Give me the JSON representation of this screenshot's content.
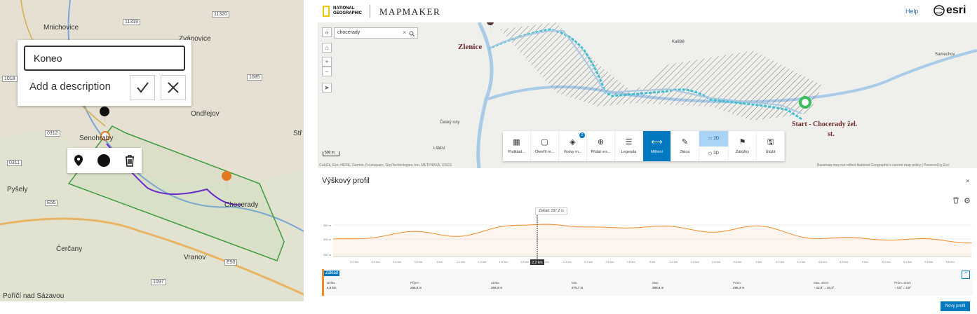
{
  "left_map": {
    "popup": {
      "input_value": "Koneo",
      "description_placeholder": "Add a description"
    },
    "toolbar_icons": [
      "location-pin-icon",
      "circle-fill-icon",
      "trash-icon"
    ],
    "labels": [
      {
        "text": "Mnichovice"
      },
      {
        "text": "Zvánovice"
      },
      {
        "text": "Ondřejov"
      },
      {
        "text": "Senohraby"
      },
      {
        "text": "Stř"
      },
      {
        "text": "Pyšely"
      },
      {
        "text": "Chocerady"
      },
      {
        "text": "Čerčany"
      },
      {
        "text": "Vranov"
      },
      {
        "text": "Poříčí nad Sázavou"
      }
    ],
    "road_numbers": [
      "11320",
      "11319",
      "1085",
      "1018",
      "0312",
      "0311",
      "E55",
      "E50",
      "1097",
      "11320"
    ]
  },
  "header": {
    "brand_line1": "NATIONAL",
    "brand_line2": "GEOGRAPHIC",
    "app_name": "MAPMAKER",
    "help": "Help",
    "esri": "esri"
  },
  "map": {
    "search_value": "chocerady",
    "scale": "500 m",
    "labels": {
      "zlenice": "Zlenice",
      "start": "Start - Chocerady žel.",
      "start2": "st.",
      "kaliste": "Kaliště",
      "samechov": "Samechov",
      "cesky_kruh": "Český ruty",
      "ledni": "Lštění"
    },
    "attribution_left": "Cu&Gk, Esri, HERE, Garmin, Foursquare, GeoTechnologies, Inc, METI/NASA, USGS",
    "attribution_right": "Basemap may not reflect National Geographic's current map policy | Powered by Esri"
  },
  "tools": [
    {
      "label": "Podklad...",
      "icon": "basemap-icon",
      "active": false
    },
    {
      "label": "Otevřít m...",
      "icon": "open-map-icon",
      "active": false
    },
    {
      "label": "Vrstvy m...",
      "icon": "layers-icon",
      "active": false,
      "badge": "2"
    },
    {
      "label": "Přidat vrs...",
      "icon": "add-layer-icon",
      "active": false
    },
    {
      "label": "Legenda",
      "icon": "legend-icon",
      "active": false
    },
    {
      "label": "Měření",
      "icon": "measure-icon",
      "active": true
    },
    {
      "label": "Skica",
      "icon": "sketch-icon",
      "active": false
    },
    {
      "label": "2D",
      "icon": "2d-icon",
      "active": true,
      "toggle": true
    },
    {
      "label": "3D",
      "icon": "3d-icon",
      "active": false,
      "toggle": true
    },
    {
      "label": "Záložky",
      "icon": "bookmark-icon",
      "active": false
    },
    {
      "label": "Uložit",
      "icon": "save-icon",
      "active": false
    }
  ],
  "profile": {
    "title": "Výškový profil",
    "close": "×",
    "tooltip": "Základ: 297,2 m",
    "cursor_label": "2,2 km",
    "y_ticks": [
      "350 m",
      "300 m",
      "250 m"
    ],
    "x_ticks": [
      "0,2 km",
      "0,4 km",
      "0,6 km",
      "0,8 km",
      "1 km",
      "1,2 km",
      "1,4 km",
      "1,6 km",
      "1,8 km",
      "2 km",
      "2,2 km",
      "2,4 km",
      "2,6 km",
      "2,8 km",
      "3 km",
      "3,2 km",
      "3,4 km",
      "3,6 km",
      "3,8 km",
      "4 km",
      "4,2 km",
      "4,4 km",
      "4,6 km",
      "4,8 km",
      "5 km",
      "5,2 km",
      "5,4 km",
      "5,6 km",
      "5,8 km"
    ],
    "stats_tab": "Základ",
    "stats": [
      {
        "label": "Délka",
        "value": "6,6 km"
      },
      {
        "label": "Přijem",
        "value": "266,8 m"
      },
      {
        "label": "Ztráta",
        "value": "269,3 m"
      },
      {
        "label": "Min.",
        "value": "275,7 m"
      },
      {
        "label": "Max.",
        "value": "399,8 m"
      },
      {
        "label": "Prům.",
        "value": "295,3 m"
      },
      {
        "label": "Max. sklon",
        "value": "↑ 22,8° ↓ 19,3°"
      },
      {
        "label": "Prům. sklon",
        "value": "↑ 3,6° ↓ 3,6°"
      }
    ],
    "new_profile": "Nový profil"
  }
}
